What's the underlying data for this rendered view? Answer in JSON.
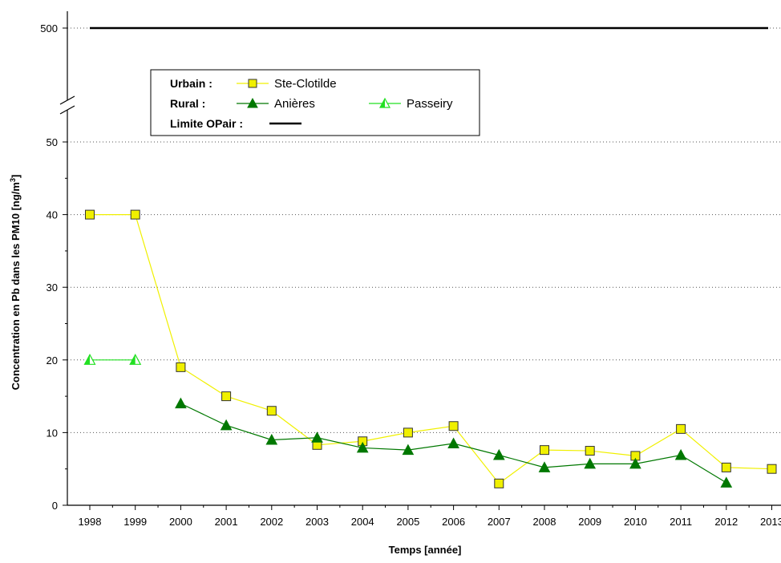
{
  "chart_data": {
    "type": "line",
    "xlabel": "Temps [année]",
    "ylabel_main": "Concentration en Pb dans les PM10 [ng/m",
    "ylabel_sup": "3",
    "ylabel_end": "]",
    "ylim_lower": [
      0,
      55
    ],
    "y_break": true,
    "y_upper_tick": 500,
    "y_ticks": [
      0,
      10,
      20,
      30,
      40,
      50
    ],
    "grid": "horizontal-dotted",
    "x": [
      "1998",
      "1999",
      "2000",
      "2001",
      "2002",
      "2003",
      "2004",
      "2005",
      "2006",
      "2007",
      "2008",
      "2009",
      "2010",
      "2011",
      "2012",
      "2013"
    ],
    "series": [
      {
        "name": "Ste-Clotilde",
        "group": "Urbain :",
        "color": "#f0f000",
        "marker": "square",
        "values": [
          40,
          40,
          19,
          15,
          13,
          8.3,
          8.8,
          10,
          10.9,
          3,
          7.6,
          7.5,
          6.8,
          10.5,
          5.2,
          5
        ]
      },
      {
        "name": "Anières",
        "group": "Rural :",
        "color": "#007800",
        "marker": "triangle",
        "values": [
          null,
          null,
          14,
          11,
          9,
          9.3,
          7.9,
          7.6,
          8.5,
          6.9,
          5.2,
          5.7,
          5.7,
          6.9,
          3.1,
          null
        ]
      },
      {
        "name": "Passeiry",
        "group": "Rural :",
        "color": "#22e022",
        "marker": "triangle-open",
        "values": [
          20,
          20,
          null,
          null,
          null,
          null,
          null,
          null,
          null,
          null,
          null,
          null,
          null,
          null,
          null,
          null
        ]
      },
      {
        "name": "Limite OPair :",
        "color": "#000000",
        "marker": "line",
        "value": 500
      }
    ],
    "legend": {
      "position": "top-left",
      "urbain_label": "Urbain :",
      "rural_label": "Rural :",
      "limite_label": "Limite OPair :"
    }
  }
}
